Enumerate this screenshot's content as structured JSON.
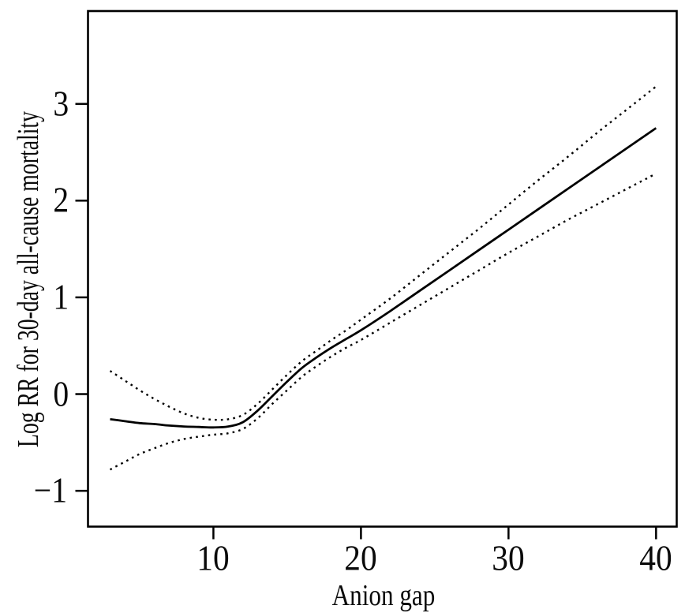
{
  "figure": {
    "background_color": "#ffffff",
    "line_color": "#000000",
    "text_color": "#0a0a0a"
  },
  "chart_data": {
    "type": "line",
    "title": "",
    "xlabel": "Anion gap",
    "ylabel": "Log RR for 30-day all-cause mortality",
    "xlim": [
      1.5,
      41.4
    ],
    "ylim": [
      -1.37,
      3.96
    ],
    "grid": false,
    "legend": "none",
    "frame": "full-box",
    "xticks": [
      {
        "value": 10,
        "label": "10"
      },
      {
        "value": 20,
        "label": "20"
      },
      {
        "value": 30,
        "label": "30"
      },
      {
        "value": 40,
        "label": "40"
      }
    ],
    "yticks": [
      {
        "value": -1,
        "label": "−1"
      },
      {
        "value": 0,
        "label": "0"
      },
      {
        "value": 1,
        "label": "1"
      },
      {
        "value": 2,
        "label": "2"
      },
      {
        "value": 3,
        "label": "3"
      }
    ],
    "x": [
      3,
      4,
      5,
      6,
      7,
      8,
      9,
      10,
      11,
      12,
      13,
      14,
      15,
      16,
      17,
      18,
      19,
      20,
      22,
      24,
      26,
      28,
      30,
      32,
      34,
      36,
      38,
      40
    ],
    "series": [
      {
        "name": "estimate",
        "style": "solid",
        "values": [
          -0.26,
          -0.28,
          -0.3,
          -0.31,
          -0.325,
          -0.335,
          -0.34,
          -0.345,
          -0.335,
          -0.29,
          -0.17,
          -0.02,
          0.13,
          0.27,
          0.38,
          0.48,
          0.57,
          0.66,
          0.86,
          1.07,
          1.28,
          1.49,
          1.7,
          1.91,
          2.12,
          2.33,
          2.54,
          2.75
        ]
      },
      {
        "name": "upper-ci",
        "style": "dotted",
        "values": [
          0.24,
          0.14,
          0.04,
          -0.05,
          -0.13,
          -0.2,
          -0.245,
          -0.265,
          -0.26,
          -0.215,
          -0.1,
          0.05,
          0.2,
          0.34,
          0.45,
          0.56,
          0.66,
          0.77,
          0.99,
          1.23,
          1.47,
          1.71,
          1.96,
          2.21,
          2.45,
          2.7,
          2.94,
          3.18
        ]
      },
      {
        "name": "lower-ci",
        "style": "dotted",
        "values": [
          -0.78,
          -0.7,
          -0.62,
          -0.56,
          -0.505,
          -0.465,
          -0.44,
          -0.42,
          -0.405,
          -0.36,
          -0.25,
          -0.1,
          0.04,
          0.18,
          0.29,
          0.39,
          0.48,
          0.56,
          0.74,
          0.92,
          1.1,
          1.28,
          1.46,
          1.63,
          1.8,
          1.96,
          2.12,
          2.28
        ]
      }
    ]
  }
}
